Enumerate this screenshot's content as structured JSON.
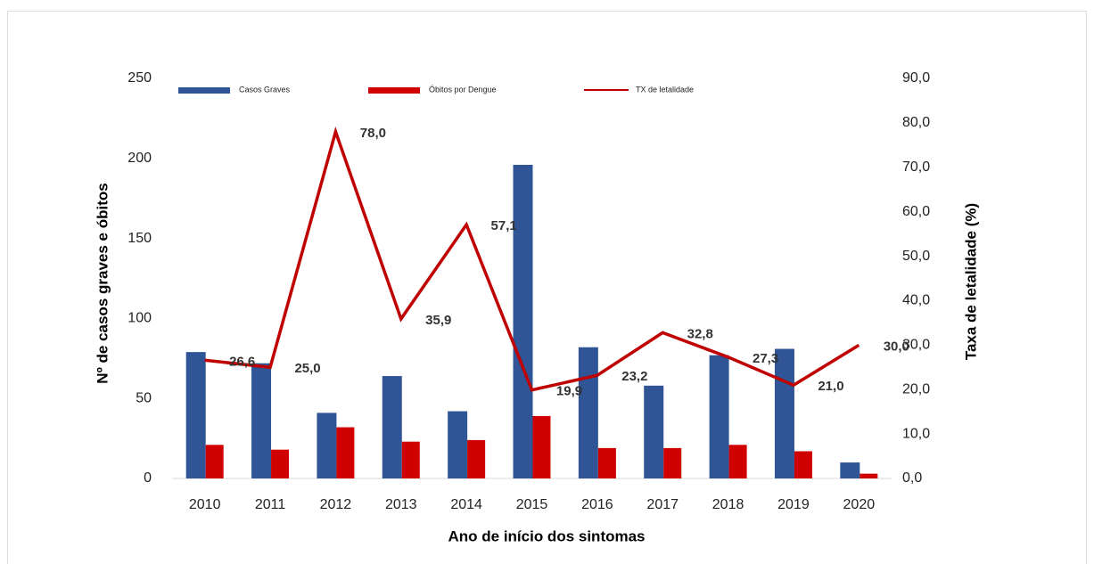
{
  "chart_data": {
    "type": "bar-line",
    "x_label": "Ano de início dos sintomas",
    "y_label": "Nº de casos graves e óbitos",
    "y2_label": "Taxa de letalidade (%)",
    "categories": [
      "2010",
      "2011",
      "2012",
      "2013",
      "2014",
      "2015",
      "2016",
      "2017",
      "2018",
      "2019",
      "2020"
    ],
    "ylim": [
      0,
      250
    ],
    "yticks": [
      0,
      50,
      100,
      150,
      200,
      250
    ],
    "y2lim": [
      0,
      90
    ],
    "y2ticks": [
      {
        "value": 0,
        "label": "0,0"
      },
      {
        "value": 10,
        "label": "10,0"
      },
      {
        "value": 20,
        "label": "20,0"
      },
      {
        "value": 30,
        "label": "30,0"
      },
      {
        "value": 40,
        "label": "40,0"
      },
      {
        "value": 50,
        "label": "50,0"
      },
      {
        "value": 60,
        "label": "60,0"
      },
      {
        "value": 70,
        "label": "70,0"
      },
      {
        "value": 80,
        "label": "80,0"
      },
      {
        "value": 90,
        "label": "90,0"
      }
    ],
    "series": [
      {
        "name": "Casos Graves",
        "color": "#2f5597",
        "kind": "bar",
        "values": [
          79,
          72,
          41,
          64,
          42,
          196,
          82,
          58,
          77,
          81,
          10
        ]
      },
      {
        "name": "Óbitos por Dengue",
        "color": "#d00000",
        "kind": "bar",
        "values": [
          21,
          18,
          32,
          23,
          24,
          39,
          19,
          19,
          21,
          17,
          3
        ]
      },
      {
        "name": "TX de letalidade",
        "color": "#c00000",
        "kind": "line",
        "axis": "y2",
        "values": [
          26.6,
          25.0,
          78.0,
          35.9,
          57.1,
          19.9,
          23.2,
          32.8,
          27.3,
          21.0,
          30.0
        ],
        "value_labels": [
          "26,6",
          "25,0",
          "78,0",
          "35,9",
          "57,1",
          "19,9",
          "23,2",
          "32,8",
          "27,3",
          "21,0",
          "30,0"
        ]
      }
    ]
  }
}
